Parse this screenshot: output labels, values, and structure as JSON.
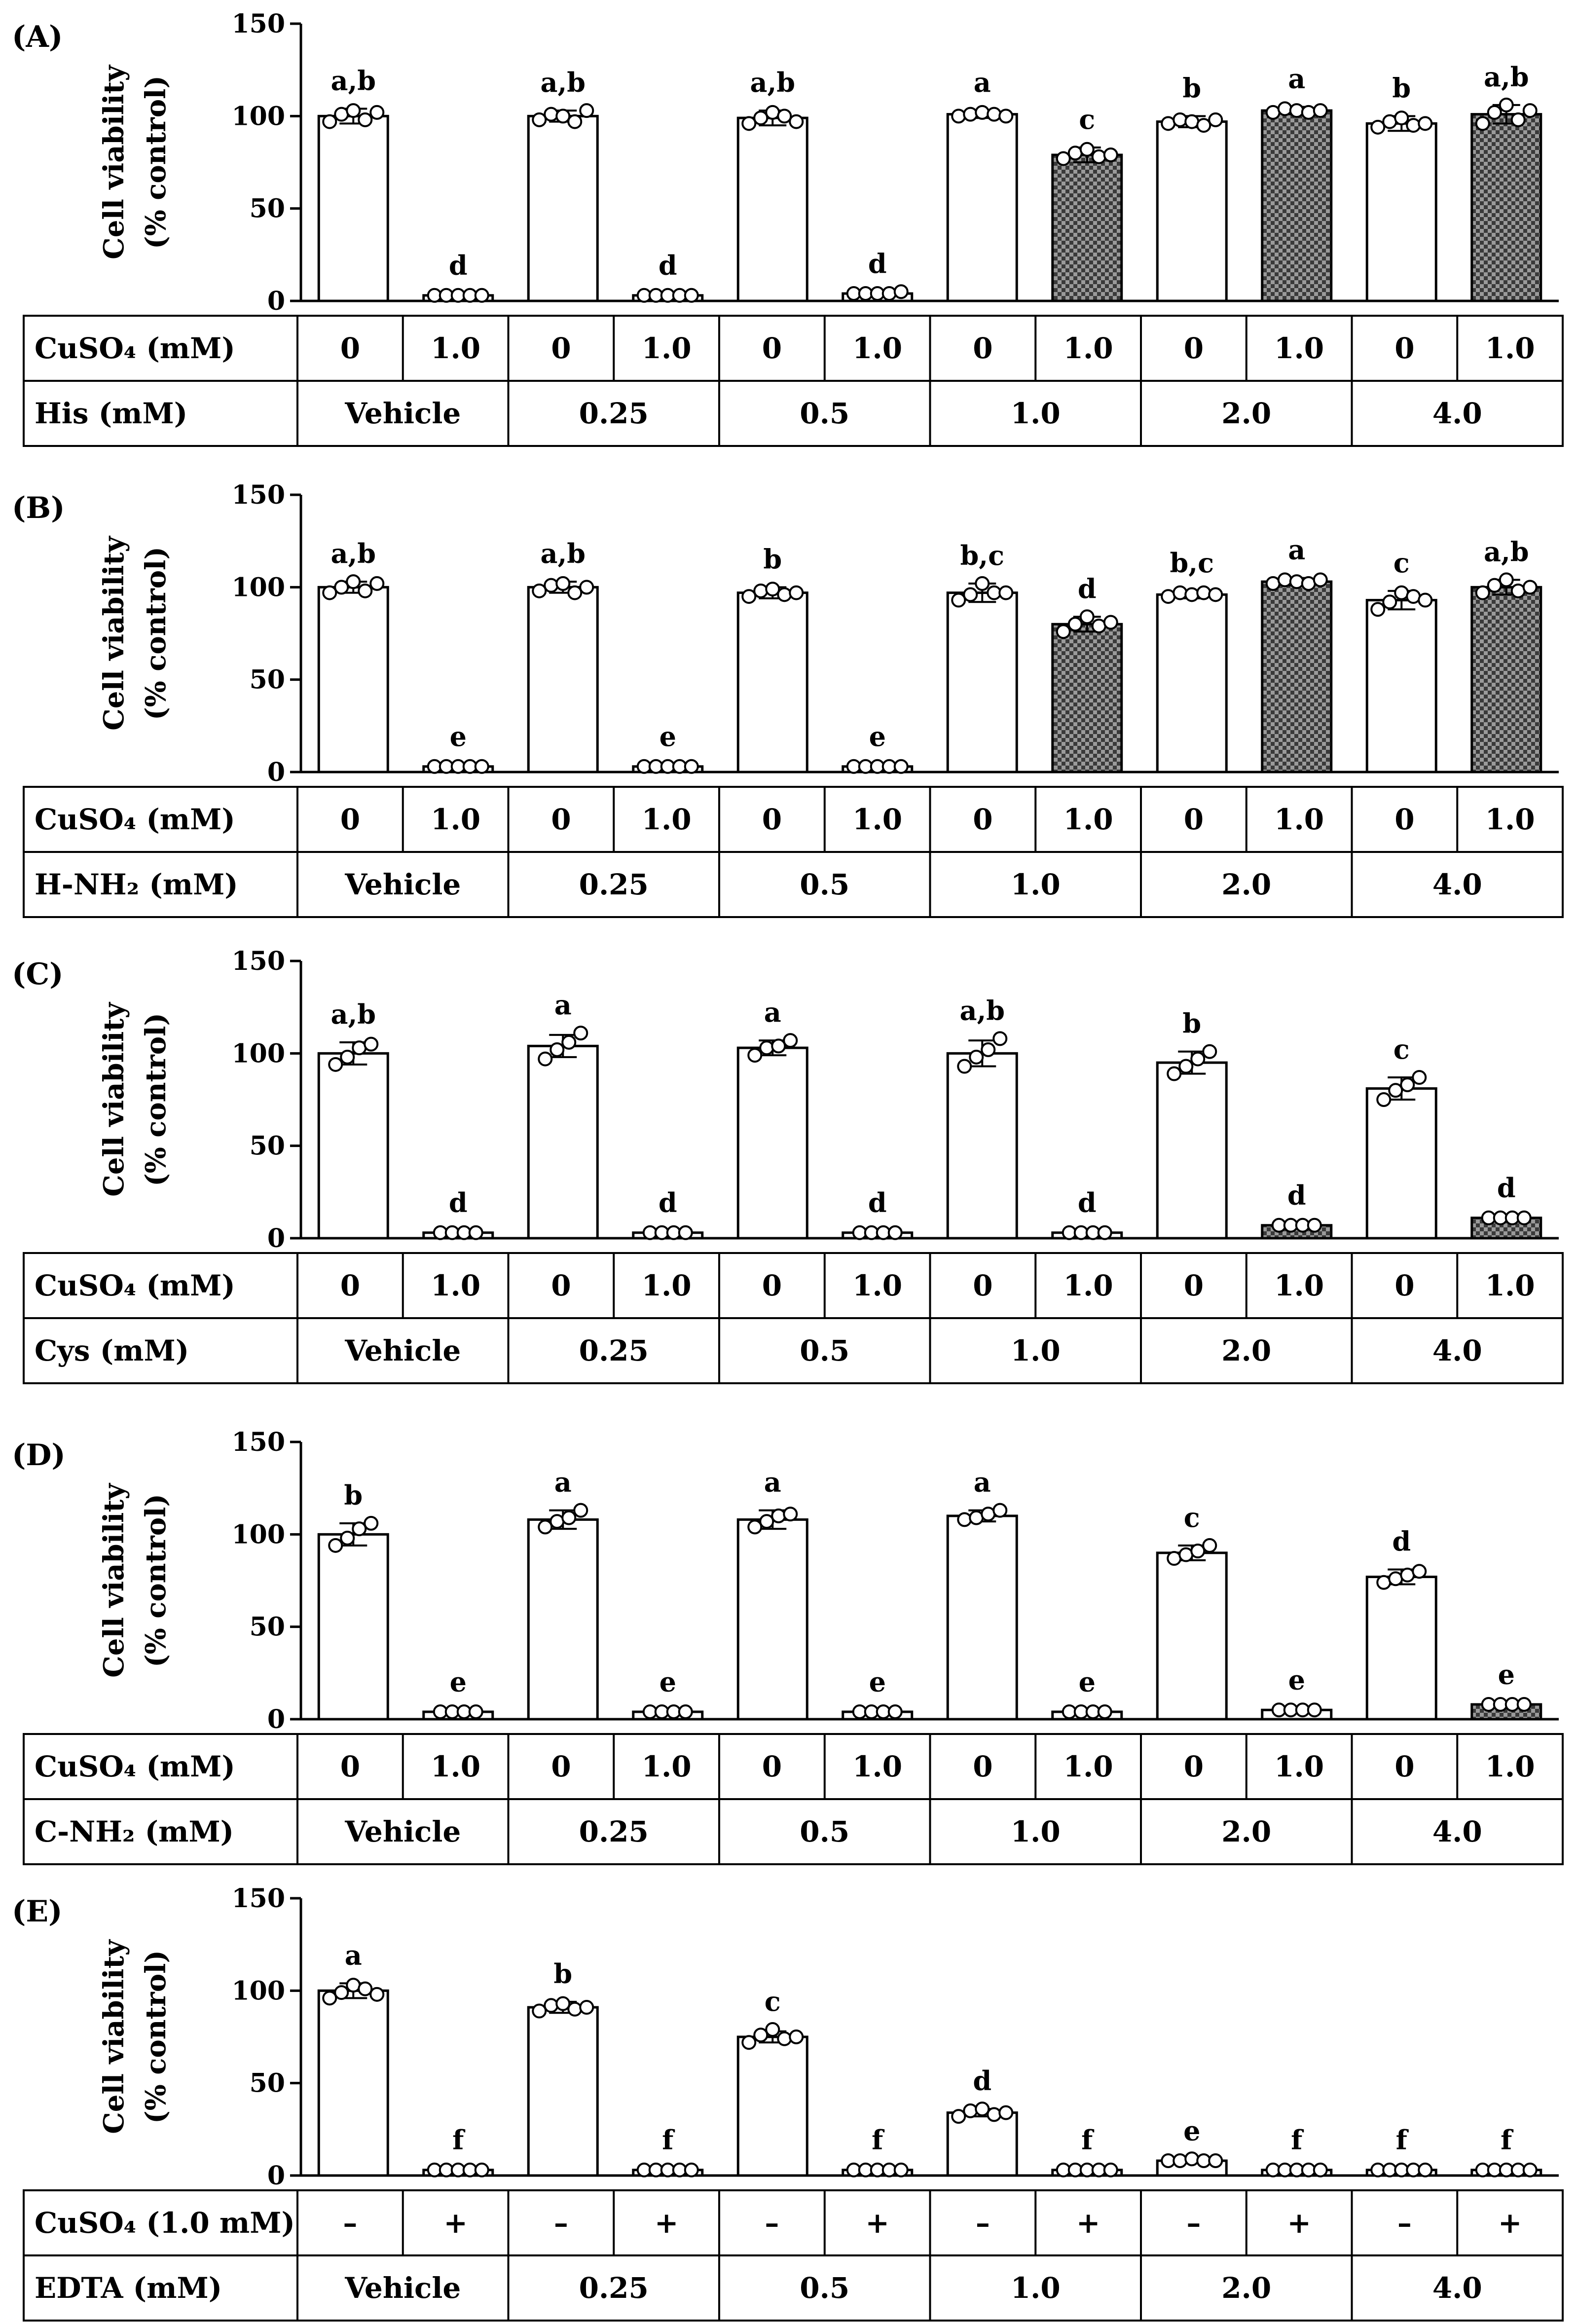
{
  "colors": {
    "bar_plain": "#ffffff",
    "bar_checker_dark": "#3a3a3a",
    "bar_checker_light": "#9a9a9a",
    "line": "#000000"
  },
  "y_axis": {
    "label_line1": "Cell viability",
    "label_line2": "(% control)",
    "ticks": [
      "0",
      "50",
      "100",
      "150"
    ]
  },
  "panels": [
    {
      "label": "(A)",
      "chart_data": {
        "type": "bar",
        "ylim": [
          0,
          150
        ],
        "values": [
          100,
          3,
          100,
          3,
          99,
          4,
          101,
          79,
          97,
          103,
          96,
          101
        ],
        "errors": [
          4,
          1,
          3,
          1,
          4,
          1,
          2,
          4,
          3,
          2,
          4,
          5
        ],
        "points": [
          [
            97,
            101,
            103,
            98,
            102
          ],
          [
            3,
            3,
            3,
            3,
            3
          ],
          [
            98,
            101,
            100,
            97,
            103
          ],
          [
            3,
            3,
            3,
            3,
            3
          ],
          [
            96,
            99,
            102,
            100,
            97
          ],
          [
            4,
            4,
            4,
            4,
            5
          ],
          [
            100,
            101,
            102,
            101,
            100
          ],
          [
            77,
            80,
            82,
            78,
            79
          ],
          [
            96,
            98,
            97,
            95,
            98
          ],
          [
            102,
            104,
            103,
            102,
            103
          ],
          [
            94,
            97,
            99,
            95,
            96
          ],
          [
            96,
            102,
            106,
            98,
            103
          ]
        ],
        "hatched": [
          false,
          false,
          false,
          false,
          false,
          false,
          false,
          true,
          false,
          true,
          false,
          true
        ],
        "sig": [
          "a,b",
          "d",
          "a,b",
          "d",
          "a,b",
          "d",
          "a",
          "c",
          "b",
          "a",
          "b",
          "a,b"
        ],
        "table": {
          "row1_label": "CuSO₄ (mM)",
          "row1": [
            "0",
            "1.0",
            "0",
            "1.0",
            "0",
            "1.0",
            "0",
            "1.0",
            "0",
            "1.0",
            "0",
            "1.0"
          ],
          "row2_label": "His (mM)",
          "row2": [
            "Vehicle",
            "0.25",
            "0.5",
            "1.0",
            "2.0",
            "4.0"
          ]
        }
      }
    },
    {
      "label": "(B)",
      "chart_data": {
        "type": "bar",
        "ylim": [
          0,
          150
        ],
        "values": [
          100,
          3,
          100,
          3,
          97,
          3,
          97,
          80,
          96,
          103,
          93,
          100
        ],
        "errors": [
          3,
          1,
          3,
          1,
          3,
          1,
          5,
          4,
          2,
          2,
          5,
          4
        ],
        "points": [
          [
            97,
            100,
            103,
            98,
            102
          ],
          [
            3,
            3,
            3,
            3,
            3
          ],
          [
            98,
            101,
            102,
            97,
            100
          ],
          [
            3,
            3,
            3,
            3,
            3
          ],
          [
            95,
            98,
            99,
            96,
            97
          ],
          [
            3,
            3,
            3,
            3,
            3
          ],
          [
            93,
            96,
            102,
            97,
            97
          ],
          [
            76,
            80,
            84,
            79,
            81
          ],
          [
            95,
            97,
            96,
            97,
            96
          ],
          [
            102,
            104,
            103,
            102,
            104
          ],
          [
            88,
            92,
            97,
            95,
            93
          ],
          [
            97,
            101,
            104,
            98,
            100
          ]
        ],
        "hatched": [
          false,
          false,
          false,
          false,
          false,
          false,
          false,
          true,
          false,
          true,
          false,
          true
        ],
        "sig": [
          "a,b",
          "e",
          "a,b",
          "e",
          "b",
          "e",
          "b,c",
          "d",
          "b,c",
          "a",
          "c",
          "a,b"
        ],
        "table": {
          "row1_label": "CuSO₄ (mM)",
          "row1": [
            "0",
            "1.0",
            "0",
            "1.0",
            "0",
            "1.0",
            "0",
            "1.0",
            "0",
            "1.0",
            "0",
            "1.0"
          ],
          "row2_label": "H-NH₂ (mM)",
          "row2": [
            "Vehicle",
            "0.25",
            "0.5",
            "1.0",
            "2.0",
            "4.0"
          ]
        }
      }
    },
    {
      "label": "(C)",
      "chart_data": {
        "type": "bar",
        "ylim": [
          0,
          150
        ],
        "values": [
          100,
          3,
          104,
          3,
          103,
          3,
          100,
          3,
          95,
          7,
          81,
          11
        ],
        "errors": [
          6,
          1,
          6,
          1,
          4,
          1,
          7,
          1,
          6,
          1,
          6,
          1
        ],
        "points": [
          [
            94,
            98,
            103,
            105
          ],
          [
            3,
            3,
            3,
            3
          ],
          [
            97,
            102,
            106,
            111
          ],
          [
            3,
            3,
            3,
            3
          ],
          [
            99,
            103,
            104,
            107
          ],
          [
            3,
            3,
            3,
            3
          ],
          [
            93,
            98,
            102,
            108
          ],
          [
            3,
            3,
            3,
            3
          ],
          [
            89,
            93,
            97,
            101
          ],
          [
            7,
            7,
            7,
            7
          ],
          [
            75,
            80,
            83,
            87
          ],
          [
            11,
            11,
            11,
            11
          ]
        ],
        "hatched": [
          false,
          false,
          false,
          false,
          false,
          false,
          false,
          false,
          false,
          true,
          false,
          true
        ],
        "sig": [
          "a,b",
          "d",
          "a",
          "d",
          "a",
          "d",
          "a,b",
          "d",
          "b",
          "d",
          "c",
          "d"
        ],
        "table": {
          "row1_label": "CuSO₄ (mM)",
          "row1": [
            "0",
            "1.0",
            "0",
            "1.0",
            "0",
            "1.0",
            "0",
            "1.0",
            "0",
            "1.0",
            "0",
            "1.0"
          ],
          "row2_label": "Cys (mM)",
          "row2": [
            "Vehicle",
            "0.25",
            "0.5",
            "1.0",
            "2.0",
            "4.0"
          ]
        }
      }
    },
    {
      "label": "(D)",
      "chart_data": {
        "type": "bar",
        "ylim": [
          0,
          150
        ],
        "values": [
          100,
          4,
          108,
          4,
          108,
          4,
          110,
          4,
          90,
          5,
          77,
          8
        ],
        "errors": [
          6,
          1,
          5,
          1,
          5,
          1,
          3,
          1,
          4,
          1,
          4,
          1
        ],
        "points": [
          [
            94,
            98,
            103,
            106
          ],
          [
            4,
            4,
            4,
            4
          ],
          [
            104,
            107,
            109,
            113
          ],
          [
            4,
            4,
            4,
            4
          ],
          [
            104,
            107,
            110,
            111
          ],
          [
            4,
            4,
            4,
            4
          ],
          [
            108,
            109,
            111,
            113
          ],
          [
            4,
            4,
            4,
            4
          ],
          [
            87,
            89,
            91,
            94
          ],
          [
            5,
            5,
            5,
            5
          ],
          [
            74,
            76,
            78,
            80
          ],
          [
            8,
            8,
            8,
            8
          ]
        ],
        "hatched": [
          false,
          false,
          false,
          false,
          false,
          false,
          false,
          false,
          false,
          false,
          false,
          true
        ],
        "sig": [
          "b",
          "e",
          "a",
          "e",
          "a",
          "e",
          "a",
          "e",
          "c",
          "e",
          "d",
          "e"
        ],
        "table": {
          "row1_label": "CuSO₄ (mM)",
          "row1": [
            "0",
            "1.0",
            "0",
            "1.0",
            "0",
            "1.0",
            "0",
            "1.0",
            "0",
            "1.0",
            "0",
            "1.0"
          ],
          "row2_label": "C-NH₂ (mM)",
          "row2": [
            "Vehicle",
            "0.25",
            "0.5",
            "1.0",
            "2.0",
            "4.0"
          ]
        }
      }
    },
    {
      "label": "(E)",
      "chart_data": {
        "type": "bar",
        "ylim": [
          0,
          150
        ],
        "values": [
          100,
          3,
          91,
          3,
          75,
          3,
          34,
          3,
          8,
          3,
          3,
          3
        ],
        "errors": [
          4,
          1,
          3,
          1,
          3,
          1,
          2,
          1,
          1,
          1,
          1,
          1
        ],
        "points": [
          [
            96,
            99,
            103,
            101,
            98
          ],
          [
            3,
            3,
            3,
            3,
            3
          ],
          [
            89,
            92,
            93,
            90,
            91
          ],
          [
            3,
            3,
            3,
            3,
            3
          ],
          [
            72,
            76,
            79,
            74,
            75
          ],
          [
            3,
            3,
            3,
            3,
            3
          ],
          [
            32,
            35,
            36,
            33,
            34
          ],
          [
            3,
            3,
            3,
            3,
            3
          ],
          [
            8,
            8,
            9,
            8,
            8
          ],
          [
            3,
            3,
            3,
            3,
            3
          ],
          [
            3,
            3,
            3,
            3,
            3
          ],
          [
            3,
            3,
            3,
            3,
            3
          ]
        ],
        "hatched": [
          false,
          false,
          false,
          false,
          false,
          false,
          false,
          false,
          false,
          false,
          false,
          false
        ],
        "sig": [
          "a",
          "f",
          "b",
          "f",
          "c",
          "f",
          "d",
          "f",
          "e",
          "f",
          "f",
          "f"
        ],
        "table": {
          "row1_label": "CuSO₄ (1.0 mM)",
          "row1": [
            "–",
            "+",
            "–",
            "+",
            "–",
            "+",
            "–",
            "+",
            "–",
            "+",
            "–",
            "+"
          ],
          "row2_label": "EDTA (mM)",
          "row2": [
            "Vehicle",
            "0.25",
            "0.5",
            "1.0",
            "2.0",
            "4.0"
          ]
        }
      }
    }
  ]
}
